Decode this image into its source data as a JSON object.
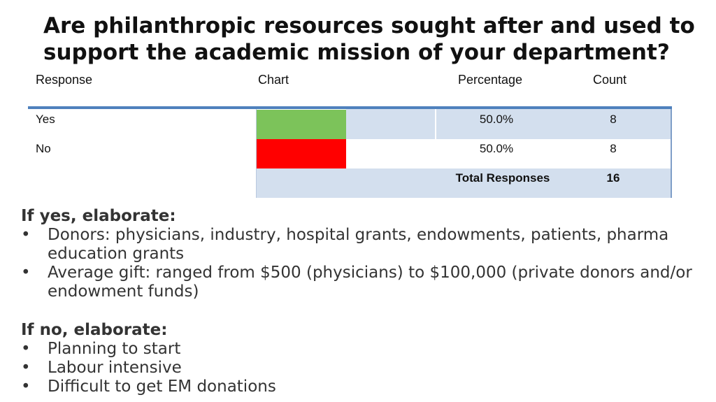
{
  "title": "Are philanthropic resources sought after and used to support the academic mission of your department?",
  "table": {
    "headers": {
      "response": "Response",
      "chart": "Chart",
      "percentage": "Percentage",
      "count": "Count"
    },
    "rows": [
      {
        "response": "Yes",
        "percentage": "50.0%",
        "count": "8",
        "bar_fraction": 0.5,
        "color": "#7cc35a"
      },
      {
        "response": "No",
        "percentage": "50.0%",
        "count": "8",
        "bar_fraction": 0.5,
        "color": "#ff0000"
      }
    ],
    "total_label": "Total Responses",
    "total_value": "16"
  },
  "yes_section": {
    "heading": "If yes, elaborate:",
    "bullets": [
      "Donors: physicians, industry, hospital grants, endowments, patients, pharma education grants",
      "Average gift: ranged from $500 (physicians) to $100,000 (private donors and/or endowment funds)"
    ]
  },
  "no_section": {
    "heading": "If no, elaborate:",
    "bullets": [
      "Planning to start",
      "Labour intensive",
      "Difficult to get EM donations"
    ]
  },
  "bullet_glyph": "•"
}
